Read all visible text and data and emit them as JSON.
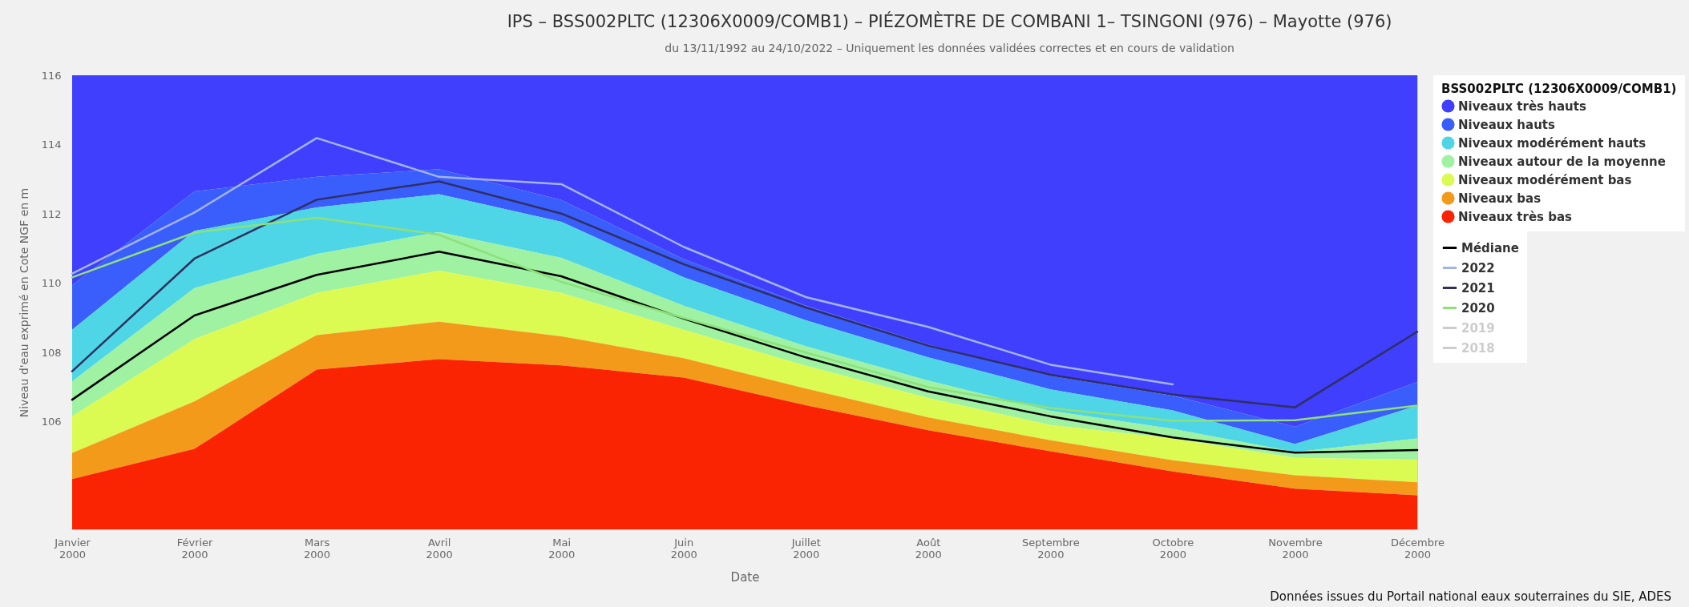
{
  "chart_data": {
    "type": "area",
    "title": "IPS – BSS002PLTC (12306X0009/COMB1) – PIÉZOMÈTRE DE COMBANI 1– TSINGONI (976) – Mayotte (976)",
    "subtitle": "du 13/11/1992 au 24/10/2022 – Uniquement les données validées correctes et en cours de validation",
    "xlabel": "Date",
    "ylabel": "Niveau d'eau exprimé en Cote NGF en m",
    "legend_title": "BSS002PLTC (12306X0009/COMB1)",
    "annotations": [
      "Données issues du Portail national eaux souterraines du SIE, ADES"
    ],
    "categories": [
      "Janvier 2000",
      "Février 2000",
      "Mars 2000",
      "Avril 2000",
      "Mai 2000",
      "Juin 2000",
      "Juillet 2000",
      "Août 2000",
      "Septembre 2000",
      "Octobre 2000",
      "Novembre 2000",
      "Décembre 2000"
    ],
    "ylim": [
      102.9,
      116
    ],
    "yticks": [
      106,
      108,
      110,
      112,
      114,
      116
    ],
    "legend": "right",
    "series": [
      {
        "name": "Niveaux très hauts",
        "color": "#3f3ffd",
        "values": [
          116,
          116,
          116,
          116,
          116,
          116,
          116,
          116,
          116,
          116,
          116,
          116
        ]
      },
      {
        "name": "Niveaux hauts",
        "color": "#3a5efc",
        "values": [
          109.94,
          112.65,
          113.07,
          113.29,
          112.4,
          110.7,
          109.35,
          108.23,
          107.33,
          106.76,
          105.86,
          107.15
        ]
      },
      {
        "name": "Niveaux modérément hauts",
        "color": "#4fd6e6",
        "values": [
          108.66,
          111.51,
          112.19,
          112.57,
          111.77,
          110.17,
          108.93,
          107.86,
          106.94,
          106.33,
          105.36,
          106.47
        ]
      },
      {
        "name": "Niveaux autour de la moyenne",
        "color": "#9ef2a2",
        "values": [
          107.17,
          109.86,
          110.84,
          111.48,
          110.73,
          109.35,
          108.18,
          107.19,
          106.32,
          105.8,
          105.13,
          105.52
        ]
      },
      {
        "name": "Niveaux modérément bas",
        "color": "#dcfb52",
        "values": [
          106.16,
          108.39,
          109.72,
          110.36,
          109.72,
          108.66,
          107.62,
          106.69,
          105.91,
          105.52,
          104.96,
          104.91
        ]
      },
      {
        "name": "Niveaux bas",
        "color": "#f39a1a",
        "values": [
          105.1,
          106.59,
          108.5,
          108.89,
          108.47,
          107.84,
          106.96,
          106.13,
          105.47,
          104.89,
          104.46,
          104.26
        ]
      },
      {
        "name": "Niveaux très bas",
        "color": "#fb2402",
        "values": [
          104.35,
          105.22,
          107.51,
          107.81,
          107.63,
          107.28,
          106.48,
          105.76,
          105.15,
          104.57,
          104.07,
          103.88
        ]
      },
      {
        "name": "Médiane",
        "type": "line",
        "color": "#000000",
        "values": [
          106.64,
          109.07,
          110.24,
          110.91,
          110.2,
          108.98,
          107.86,
          106.88,
          106.16,
          105.55,
          105.11,
          105.19
        ]
      },
      {
        "name": "2022",
        "type": "line",
        "color": "#a3b3ee",
        "values": [
          110.28,
          112.04,
          114.19,
          113.07,
          112.86,
          111.05,
          109.6,
          108.74,
          107.65,
          107.08,
          null,
          null
        ]
      },
      {
        "name": "2021",
        "type": "line",
        "color": "#2f2f60",
        "values": [
          107.46,
          110.71,
          112.41,
          112.94,
          112.01,
          110.55,
          109.3,
          108.2,
          107.36,
          106.79,
          106.42,
          108.6
        ]
      },
      {
        "name": "2020",
        "type": "line",
        "color": "#8ee07a",
        "values": [
          110.17,
          111.46,
          111.89,
          111.4,
          110.04,
          109.0,
          108.0,
          107.0,
          106.4,
          106.03,
          106.05,
          106.47
        ]
      },
      {
        "name": "2019",
        "type": "line",
        "color": "#cccccc",
        "values": [
          null,
          null,
          null,
          null,
          null,
          null,
          null,
          null,
          null,
          null,
          null,
          null
        ]
      },
      {
        "name": "2018",
        "type": "line",
        "color": "#cccccc",
        "values": [
          null,
          null,
          null,
          null,
          null,
          null,
          null,
          null,
          null,
          null,
          null,
          null
        ]
      }
    ]
  }
}
